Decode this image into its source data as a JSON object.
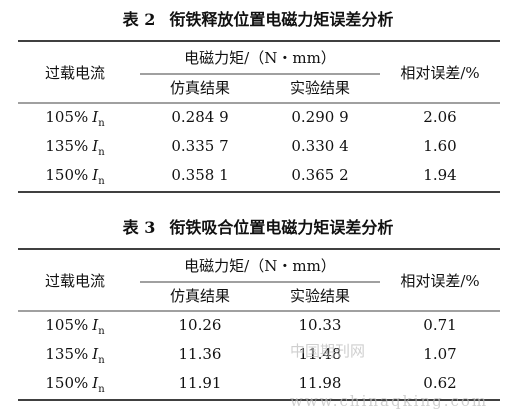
{
  "tables": [
    {
      "title": {
        "label": "表 2",
        "text": "衔铁释放位置电磁力矩误差分析"
      },
      "header": {
        "current": "过载电流",
        "group": "电磁力矩/（N・mm）",
        "sub": [
          "仿真结果",
          "实验结果"
        ],
        "error": "相对误差/%"
      },
      "rows": [
        {
          "current": {
            "value": "105%",
            "symbol": "I",
            "subscript": "n"
          },
          "cells": [
            "0.284 9",
            "0.290 9",
            "2.06"
          ]
        },
        {
          "current": {
            "value": "135%",
            "symbol": "I",
            "subscript": "n"
          },
          "cells": [
            "0.335 7",
            "0.330 4",
            "1.60"
          ]
        },
        {
          "current": {
            "value": "150%",
            "symbol": "I",
            "subscript": "n"
          },
          "cells": [
            "0.358 1",
            "0.365 2",
            "1.94"
          ]
        }
      ]
    },
    {
      "title": {
        "label": "表 3",
        "text": "衔铁吸合位置电磁力矩误差分析"
      },
      "header": {
        "current": "过载电流",
        "group": "电磁力矩/（N・mm）",
        "sub": [
          "仿真结果",
          "实验结果"
        ],
        "error": "相对误差/%"
      },
      "rows": [
        {
          "current": {
            "value": "105%",
            "symbol": "I",
            "subscript": "n"
          },
          "cells": [
            "10.26",
            "10.33",
            "0.71"
          ]
        },
        {
          "current": {
            "value": "135%",
            "symbol": "I",
            "subscript": "n"
          },
          "cells": [
            "11.36",
            "11.48",
            "1.07"
          ]
        },
        {
          "current": {
            "value": "150%",
            "symbol": "I",
            "subscript": "n"
          },
          "cells": [
            "11.91",
            "11.98",
            "0.62"
          ]
        }
      ]
    }
  ],
  "watermark": {
    "name": "中国期刊网",
    "url": "www.chinaqking.com"
  }
}
